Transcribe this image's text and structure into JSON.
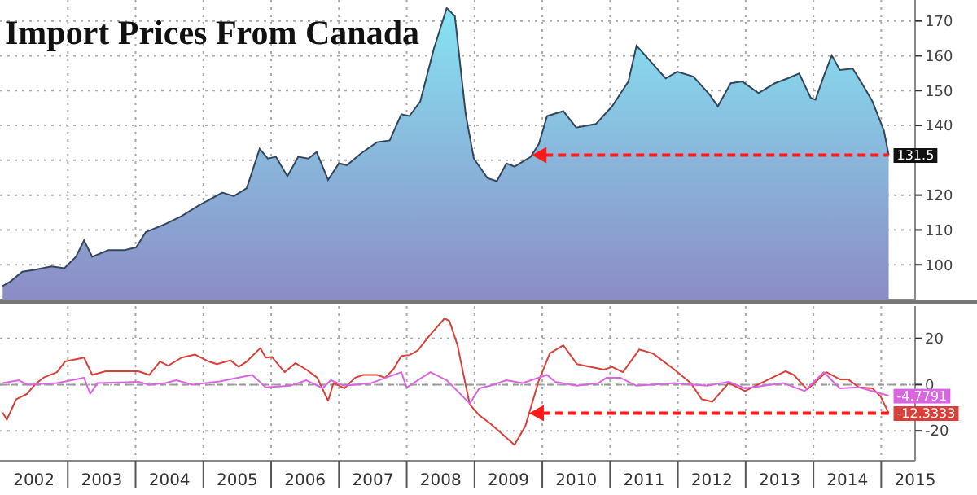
{
  "chart_data": [
    {
      "type": "area",
      "title": "Import Prices From Canada",
      "x": [
        2002.04,
        2002.16,
        2002.33,
        2002.52,
        2002.76,
        2002.95,
        2003.12,
        2003.24,
        2003.36,
        2003.6,
        2003.84,
        2004.01,
        2004.15,
        2004.44,
        2004.68,
        2004.92,
        2005.28,
        2005.45,
        2005.64,
        2005.83,
        2005.95,
        2006.07,
        2006.24,
        2006.4,
        2006.55,
        2006.67,
        2006.84,
        2007.0,
        2007.12,
        2007.32,
        2007.56,
        2007.75,
        2007.92,
        2008.04,
        2008.2,
        2008.4,
        2008.59,
        2008.71,
        2008.87,
        2008.99,
        2009.19,
        2009.33,
        2009.47,
        2009.59,
        2009.83,
        2009.95,
        2010.07,
        2010.31,
        2010.5,
        2010.79,
        2011.03,
        2011.27,
        2011.39,
        2011.54,
        2011.82,
        2011.99,
        2012.23,
        2012.47,
        2012.59,
        2012.78,
        2012.95,
        2013.19,
        2013.43,
        2013.62,
        2013.79,
        2013.96,
        2014.03,
        2014.15,
        2014.27,
        2014.39,
        2014.58,
        2014.73,
        2014.87,
        2015.04,
        2015.11
      ],
      "series": [
        {
          "color": "#86dcec",
          "values": [
            93.9,
            95.3,
            98,
            98.6,
            99.5,
            99,
            102.3,
            107,
            102.3,
            104.2,
            104.2,
            105,
            109.4,
            111.7,
            114,
            116.9,
            120.7,
            119.7,
            122,
            133.3,
            130.5,
            131,
            125.4,
            131,
            130.5,
            132.4,
            124.4,
            129.1,
            128.6,
            131.9,
            135.2,
            135.7,
            143.2,
            142.7,
            146.9,
            162,
            173.7,
            171.4,
            143.2,
            130.5,
            124.9,
            124,
            129.1,
            128.2,
            131,
            134.7,
            142.7,
            144.1,
            139.4,
            140.4,
            145.5,
            152.6,
            162.9,
            159.6,
            153.5,
            155.4,
            154,
            148.8,
            145.5,
            152.1,
            152.6,
            149.3,
            152.1,
            153.5,
            154.9,
            147.9,
            147.4,
            154,
            160.1,
            155.9,
            156.3,
            151.6,
            146.9,
            138.5,
            131.5
          ],
          "value_labels": [
            null,
            null,
            null,
            null,
            null,
            null,
            null,
            null,
            null,
            null,
            null,
            null,
            null,
            null,
            null,
            null,
            null,
            null,
            null,
            null,
            null,
            null,
            null,
            null,
            null,
            null,
            null,
            null,
            null,
            null,
            null,
            null,
            null,
            null,
            null,
            null,
            null,
            null,
            null,
            null,
            null,
            null,
            null,
            null,
            null,
            null,
            null,
            null,
            null,
            null,
            null,
            null,
            null,
            null,
            null,
            null,
            null,
            null,
            null,
            null,
            null,
            null,
            null,
            null,
            null,
            null,
            null,
            null,
            null,
            null,
            null,
            null,
            null,
            null,
            "131.5"
          ]
        }
      ],
      "xlim": [
        2002,
        2015.5
      ],
      "ylim": [
        90,
        176
      ],
      "xticks": [
        {
          "value": 2003,
          "label": null
        },
        {
          "value": 2004,
          "label": null
        },
        {
          "value": 2005,
          "label": null
        },
        {
          "value": 2006,
          "label": null
        },
        {
          "value": 2007,
          "label": null
        },
        {
          "value": 2008,
          "label": null
        },
        {
          "value": 2009,
          "label": null
        },
        {
          "value": 2010,
          "label": null
        },
        {
          "value": 2011,
          "label": null
        },
        {
          "value": 2012,
          "label": null
        },
        {
          "value": 2013,
          "label": null
        },
        {
          "value": 2014,
          "label": null
        },
        {
          "value": 2015,
          "label": null
        }
      ],
      "yticks": [
        100,
        110,
        120,
        {
          "value": 130,
          "label": null
        },
        140,
        150,
        160,
        170
      ],
      "tick_labels": "y",
      "grid": true
    },
    {
      "type": "line",
      "series": [
        {
          "color": "#d9403a",
          "x": [
            2002.04,
            2002.1,
            2002.24,
            2002.4,
            2002.52,
            2002.64,
            2002.84,
            2002.96,
            2003.24,
            2003.36,
            2003.56,
            2003.84,
            2004.04,
            2004.2,
            2004.36,
            2004.48,
            2004.68,
            2004.88,
            2005.08,
            2005.2,
            2005.4,
            2005.52,
            2005.64,
            2005.84,
            2005.92,
            2006.01,
            2006.2,
            2006.36,
            2006.52,
            2006.68,
            2006.84,
            2006.92,
            2007.08,
            2007.24,
            2007.36,
            2007.56,
            2007.68,
            2007.8,
            2007.92,
            2008.04,
            2008.16,
            2008.35,
            2008.56,
            2008.63,
            2008.75,
            2008.83,
            2008.93,
            2009.07,
            2009.23,
            2009.59,
            2009.75,
            2009.95,
            2010.11,
            2010.31,
            2010.51,
            2010.91,
            2011.03,
            2011.19,
            2011.43,
            2011.63,
            2011.95,
            2012.19,
            2012.35,
            2012.51,
            2012.75,
            2012.99,
            2013.23,
            2013.59,
            2013.71,
            2013.91,
            2014.19,
            2014.39,
            2014.51,
            2014.67,
            2014.87,
            2014.99,
            2015.11
          ],
          "values": [
            -12.1,
            -15.2,
            -6.3,
            -4,
            0.2,
            3,
            5.4,
            10,
            11.7,
            4.2,
            5.8,
            5.8,
            5.8,
            4.2,
            10,
            8.2,
            11.7,
            13,
            10,
            8.9,
            10.5,
            7.7,
            10,
            15.8,
            11.7,
            12,
            5.4,
            9.3,
            6.5,
            3,
            -7,
            0.7,
            -1.6,
            3,
            4.2,
            4.2,
            3,
            6.5,
            12.4,
            12.8,
            14.7,
            21.7,
            28.7,
            27.5,
            17,
            5.4,
            -8.6,
            -13.3,
            -16.8,
            -26.1,
            -17.9,
            1.9,
            13.5,
            17,
            8.9,
            6.5,
            7.7,
            5.4,
            15.2,
            13.5,
            6.5,
            0.7,
            -6.3,
            -7.4,
            0.7,
            -2.8,
            0.7,
            5.8,
            4.2,
            -2.1,
            5.4,
            2.3,
            2.3,
            -1.2,
            -1.6,
            -5.1,
            -12.3333
          ],
          "value_labels": [
            null,
            null,
            null,
            null,
            null,
            null,
            null,
            null,
            null,
            null,
            null,
            null,
            null,
            null,
            null,
            null,
            null,
            null,
            null,
            null,
            null,
            null,
            null,
            null,
            null,
            null,
            null,
            null,
            null,
            null,
            null,
            null,
            null,
            null,
            null,
            null,
            null,
            null,
            null,
            null,
            null,
            null,
            null,
            null,
            null,
            null,
            null,
            null,
            null,
            null,
            null,
            null,
            null,
            null,
            null,
            null,
            null,
            null,
            null,
            null,
            null,
            null,
            null,
            null,
            null,
            null,
            null,
            null,
            null,
            null,
            null,
            null,
            null,
            null,
            null,
            null,
            "-12.3333"
          ]
        },
        {
          "color": "#d966e0",
          "x": [
            2002.04,
            2002.28,
            2002.4,
            2002.84,
            2003.24,
            2003.33,
            2003.44,
            2004.04,
            2004.2,
            2004.44,
            2004.6,
            2004.84,
            2005.24,
            2005.72,
            2005.92,
            2006.28,
            2006.52,
            2006.76,
            2006.88,
            2007.08,
            2007.48,
            2007.92,
            2008.0,
            2008.35,
            2008.59,
            2008.93,
            2009.07,
            2009.23,
            2009.47,
            2009.71,
            2010.07,
            2010.19,
            2010.51,
            2010.83,
            2010.95,
            2011.15,
            2011.39,
            2011.95,
            2012.43,
            2012.75,
            2012.99,
            2013.55,
            2013.87,
            2014.15,
            2014.39,
            2014.67,
            2015.11
          ],
          "values": [
            0.7,
            1.9,
            0,
            0.7,
            3,
            -4,
            0.7,
            1.2,
            0,
            0.7,
            1.9,
            0,
            1.4,
            4.2,
            -1.2,
            -0.5,
            1.9,
            -1.6,
            1.9,
            -0.5,
            0.7,
            5.4,
            -1.2,
            5.4,
            1.9,
            -8.2,
            -1.6,
            -0.5,
            1.9,
            0.7,
            4.2,
            1.2,
            -0.5,
            0.7,
            3,
            3,
            -0.5,
            0.7,
            -0.5,
            1.2,
            -1.6,
            0.7,
            -2.8,
            5.4,
            -1.6,
            -1.2,
            -4.7791
          ],
          "value_labels": [
            null,
            null,
            null,
            null,
            null,
            null,
            null,
            null,
            null,
            null,
            null,
            null,
            null,
            null,
            null,
            null,
            null,
            null,
            null,
            null,
            null,
            null,
            null,
            null,
            null,
            null,
            null,
            null,
            null,
            null,
            null,
            null,
            null,
            null,
            null,
            null,
            null,
            null,
            null,
            null,
            null,
            null,
            null,
            null,
            null,
            null,
            "-4.7791"
          ]
        }
      ],
      "ref_lines": [
        {
          "axis": "y",
          "value": 0,
          "color": "#999999",
          "line_style": "dashed"
        }
      ],
      "xlim": [
        2002,
        2015.5
      ],
      "ylim": [
        -33,
        34
      ],
      "xticks": [
        {
          "value": 2002.5,
          "label": "2002"
        },
        {
          "value": 2003,
          "label": null
        },
        {
          "value": 2003.5,
          "label": "2003"
        },
        {
          "value": 2004,
          "label": null
        },
        {
          "value": 2004.5,
          "label": "2004"
        },
        {
          "value": 2005,
          "label": null
        },
        {
          "value": 2005.5,
          "label": "2005"
        },
        {
          "value": 2006,
          "label": null
        },
        {
          "value": 2006.5,
          "label": "2006"
        },
        {
          "value": 2007,
          "label": null
        },
        {
          "value": 2007.5,
          "label": "2007"
        },
        {
          "value": 2008,
          "label": null
        },
        {
          "value": 2008.5,
          "label": "2008"
        },
        {
          "value": 2009,
          "label": null
        },
        {
          "value": 2009.5,
          "label": "2009"
        },
        {
          "value": 2010,
          "label": null
        },
        {
          "value": 2010.5,
          "label": "2010"
        },
        {
          "value": 2011,
          "label": null
        },
        {
          "value": 2011.5,
          "label": "2011"
        },
        {
          "value": 2012,
          "label": null
        },
        {
          "value": 2012.5,
          "label": "2012"
        },
        {
          "value": 2013,
          "label": null
        },
        {
          "value": 2013.5,
          "label": "2013"
        },
        {
          "value": 2014,
          "label": null
        },
        {
          "value": 2014.5,
          "label": "2014"
        },
        {
          "value": 2015,
          "label": null
        },
        {
          "value": 2015.5,
          "label": "2015"
        }
      ],
      "yticks": [
        -20,
        0,
        20
      ],
      "grid": true
    }
  ]
}
